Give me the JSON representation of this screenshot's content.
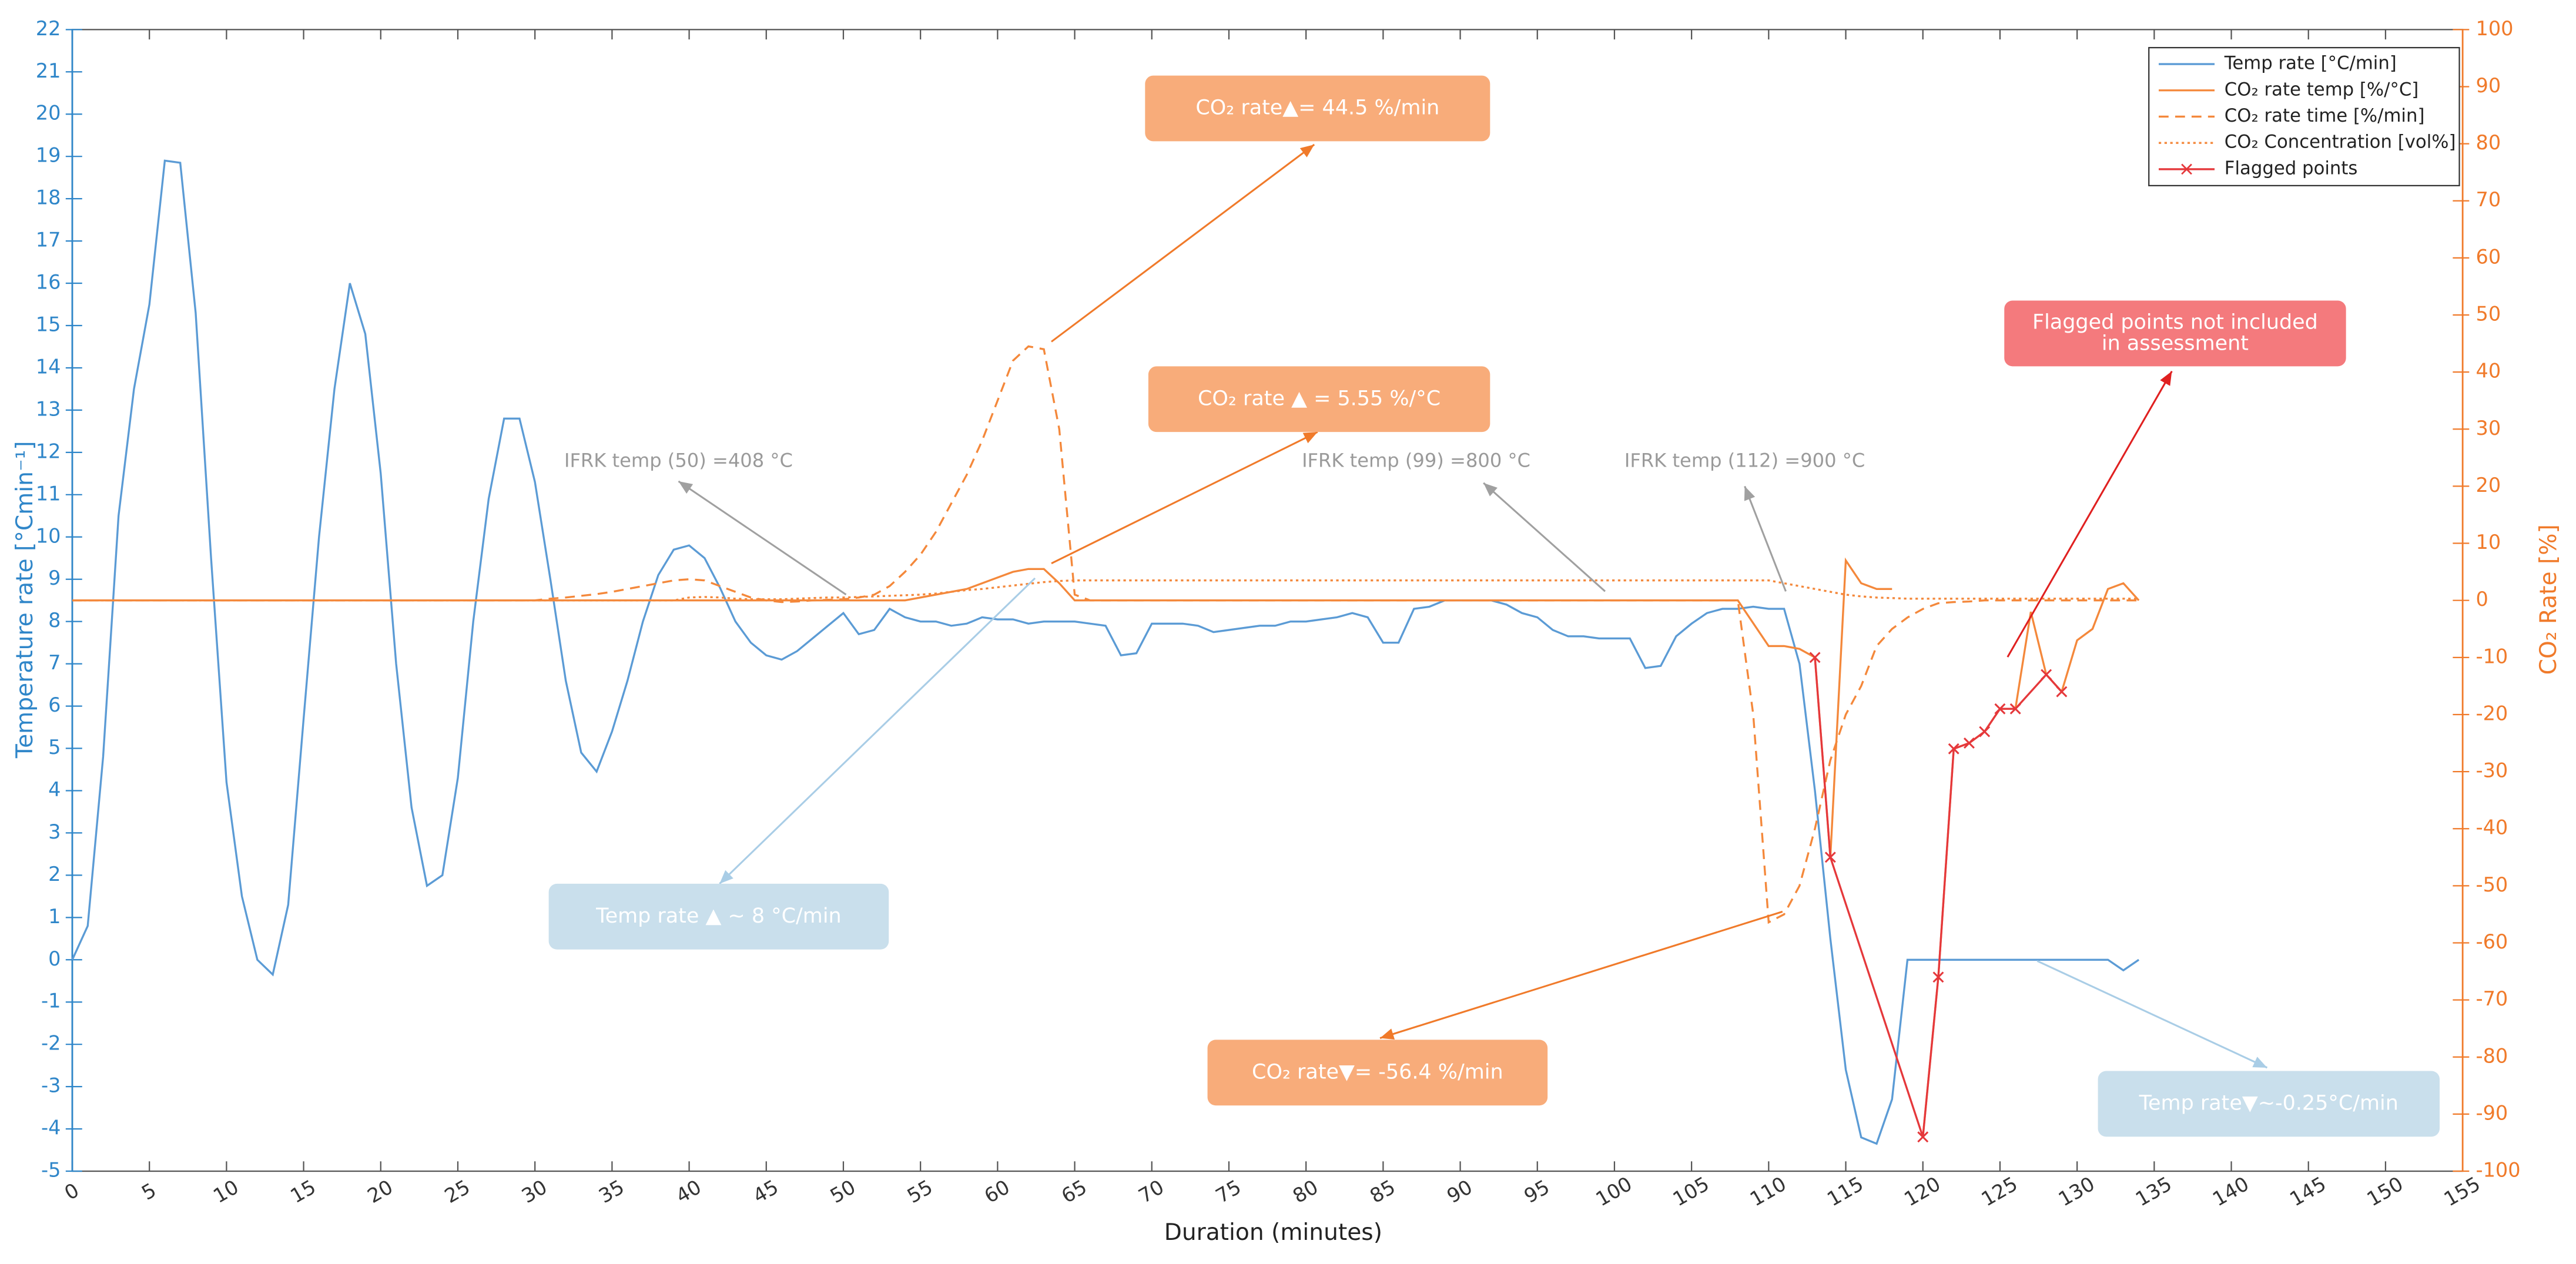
{
  "chart_data": {
    "type": "line",
    "xlabel": "Duration (minutes)",
    "ylabel": "Temperature rate [°Cmin⁻¹]",
    "y2label": "CO₂ Rate [%]",
    "xlim": [
      0,
      155
    ],
    "xticks": [
      0,
      5,
      10,
      15,
      20,
      25,
      30,
      35,
      40,
      45,
      50,
      55,
      60,
      65,
      70,
      75,
      80,
      85,
      90,
      95,
      100,
      105,
      110,
      115,
      120,
      125,
      130,
      135,
      140,
      145,
      150,
      155
    ],
    "ylim": [
      -5,
      22
    ],
    "yticks": [
      -5,
      -4,
      -3,
      -2,
      -1,
      0,
      1,
      2,
      3,
      4,
      5,
      6,
      7,
      8,
      9,
      10,
      11,
      12,
      13,
      14,
      15,
      16,
      17,
      18,
      19,
      20,
      21,
      22
    ],
    "y2lim": [
      -100,
      100
    ],
    "y2ticks": [
      -100,
      -90,
      -80,
      -70,
      -60,
      -50,
      -40,
      -30,
      -20,
      -10,
      0,
      10,
      20,
      30,
      40,
      50,
      60,
      70,
      80,
      90,
      100
    ],
    "y_color": "#2f86c9",
    "y2_color": "#f07a2a",
    "legend": "upper right",
    "grid": false,
    "x": [
      0,
      1,
      2,
      3,
      4,
      5,
      6,
      7,
      8,
      9,
      10,
      11,
      12,
      13,
      14,
      15,
      16,
      17,
      18,
      19,
      20,
      21,
      22,
      23,
      24,
      25,
      26,
      27,
      28,
      29,
      30,
      31,
      32,
      33,
      34,
      35,
      36,
      37,
      38,
      39,
      40,
      41,
      42,
      43,
      44,
      45,
      46,
      47,
      48,
      49,
      50,
      51,
      52,
      53,
      54,
      55,
      56,
      57,
      58,
      59,
      60,
      61,
      62,
      63,
      64,
      65,
      66,
      67,
      68,
      69,
      70,
      71,
      72,
      73,
      74,
      75,
      76,
      77,
      78,
      79,
      80,
      81,
      82,
      83,
      84,
      85,
      86,
      87,
      88,
      89,
      90,
      91,
      92,
      93,
      94,
      95,
      96,
      97,
      98,
      99,
      100,
      101,
      102,
      103,
      104,
      105,
      106,
      107,
      108,
      109,
      110,
      111,
      112,
      113,
      114,
      115,
      116,
      117,
      118,
      119,
      120,
      121,
      122,
      123,
      124,
      125,
      126,
      127,
      128,
      129,
      130,
      131,
      132,
      133,
      134
    ],
    "series": [
      {
        "name": "Temp rate [°C/min]",
        "color": "#5b9bd5",
        "linestyle": "solid",
        "values": [
          0,
          0.8,
          4.8,
          10.5,
          13.5,
          15.5,
          18.9,
          18.85,
          15.3,
          9.5,
          4.2,
          1.5,
          0,
          -0.35,
          1.3,
          5.7,
          10,
          13.5,
          16,
          14.8,
          11.5,
          7,
          3.6,
          1.75,
          2,
          4.3,
          8,
          10.9,
          12.8,
          12.8,
          11.3,
          9,
          6.6,
          4.9,
          4.45,
          5.4,
          6.6,
          8,
          9.1,
          9.7,
          9.8,
          9.5,
          8.8,
          8,
          7.5,
          7.2,
          7.1,
          7.3,
          7.6,
          7.9,
          8.2,
          7.7,
          7.8,
          8.3,
          8.1,
          8,
          8,
          7.9,
          7.95,
          8.1,
          8.05,
          8.05,
          7.95,
          8,
          8,
          8,
          7.95,
          7.9,
          7.2,
          7.25,
          7.95,
          7.95,
          7.95,
          7.9,
          7.75,
          7.8,
          7.85,
          7.9,
          7.9,
          8,
          8,
          8.05,
          8.1,
          8.2,
          8.1,
          7.5,
          7.5,
          8.3,
          8.35,
          8.5,
          8.5,
          8.5,
          8.5,
          8.4,
          8.2,
          8.1,
          7.8,
          7.65,
          7.65,
          7.6,
          7.6,
          7.6,
          6.9,
          6.95,
          7.65,
          7.95,
          8.2,
          8.3,
          8.3,
          8.35,
          8.3,
          8.3,
          7,
          4,
          0.5,
          -2.6,
          -4.2,
          -4.35,
          -3.3,
          0,
          0,
          0,
          0,
          0,
          0,
          0,
          0,
          0,
          0,
          0,
          0,
          0,
          0,
          -0.25,
          0
        ]
      },
      {
        "name": "CO₂ rate temp [%/°C]",
        "color": "#f4883b",
        "linestyle": "solid",
        "axis": "y2",
        "values": [
          0,
          0,
          0,
          0,
          0,
          0,
          0,
          0,
          0,
          0,
          0,
          0,
          0,
          0,
          0,
          0,
          0,
          0,
          0,
          0,
          0,
          0,
          0,
          0,
          0,
          0,
          0,
          0,
          0,
          0,
          0,
          0,
          0,
          0,
          0,
          0,
          0,
          0,
          0,
          0,
          0,
          0,
          0,
          0,
          0,
          0,
          0,
          0,
          0,
          0,
          0,
          0,
          0,
          0,
          0,
          0.5,
          1,
          1.5,
          2,
          3,
          4,
          5,
          5.5,
          5.5,
          3,
          0,
          0,
          0,
          0,
          0,
          0,
          0,
          0,
          0,
          0,
          0,
          0,
          0,
          0,
          0,
          0,
          0,
          0,
          0,
          0,
          0,
          0,
          0,
          0,
          0,
          0,
          0,
          0,
          0,
          0,
          0,
          0,
          0,
          0,
          0,
          0,
          0,
          0,
          0,
          0,
          0,
          0,
          0,
          0,
          -4,
          -8,
          -8,
          -8.5,
          -10,
          -45,
          7,
          3,
          2,
          2,
          null,
          -94,
          -66,
          -26,
          -25,
          -23,
          -19,
          -19,
          -2,
          -13,
          -16,
          -7,
          -5,
          2,
          3,
          0
        ]
      },
      {
        "name": "CO₂ rate time [%/min]",
        "color": "#f4883b",
        "linestyle": "dashed",
        "axis": "y2",
        "values": [
          0,
          0,
          0,
          0,
          0,
          0,
          0,
          0,
          0,
          0,
          0,
          0,
          0,
          0,
          0,
          0,
          0,
          0,
          0,
          0,
          0,
          0,
          0,
          0,
          0,
          0,
          0,
          0,
          0,
          0,
          0,
          0.3,
          0.5,
          0.8,
          1.1,
          1.5,
          2,
          2.5,
          3,
          3.5,
          3.7,
          3.5,
          2.5,
          1.5,
          0.5,
          0,
          -0.3,
          -0.2,
          0,
          0.1,
          0.2,
          0.5,
          1,
          2.5,
          5,
          8,
          12,
          17,
          22,
          28,
          35,
          42,
          44.5,
          44,
          30,
          1,
          0,
          0,
          0,
          0,
          0,
          0,
          0,
          0,
          0,
          0,
          0,
          0,
          0,
          0,
          0,
          0,
          0,
          0,
          0,
          0,
          0,
          0,
          0,
          0,
          0,
          0,
          0,
          0,
          0,
          0,
          0,
          0,
          0,
          0,
          0,
          0,
          0,
          0,
          0,
          0,
          0,
          0,
          0,
          -20,
          -56.4,
          -55,
          -50,
          -40,
          -28,
          -20,
          -15,
          -8,
          -5,
          -3,
          -1.5,
          -0.5,
          -0.3,
          -0.2,
          0,
          0,
          0,
          0,
          0,
          0,
          0,
          0,
          0,
          0,
          0
        ]
      },
      {
        "name": "CO₂ Concentration [vol%]",
        "color": "#f4883b",
        "linestyle": "dotted",
        "axis": "y2",
        "values": [
          0,
          0,
          0,
          0,
          0,
          0,
          0,
          0,
          0,
          0,
          0,
          0,
          0,
          0,
          0,
          0,
          0,
          0,
          0,
          0,
          0,
          0,
          0,
          0,
          0,
          0,
          0,
          0,
          0,
          0,
          0,
          0,
          0,
          0,
          0,
          0,
          0,
          0,
          0,
          0,
          0.5,
          0.6,
          0.5,
          0.3,
          0.2,
          0.2,
          0.2,
          0.3,
          0.4,
          0.5,
          0.5,
          0.6,
          0.7,
          0.8,
          0.9,
          1,
          1.2,
          1.5,
          1.8,
          2,
          2.3,
          2.6,
          2.9,
          3.2,
          3.4,
          3.5,
          3.5,
          3.5,
          3.5,
          3.5,
          3.5,
          3.5,
          3.5,
          3.5,
          3.5,
          3.5,
          3.5,
          3.5,
          3.5,
          3.5,
          3.5,
          3.5,
          3.5,
          3.5,
          3.5,
          3.5,
          3.5,
          3.5,
          3.5,
          3.5,
          3.5,
          3.5,
          3.5,
          3.5,
          3.5,
          3.5,
          3.5,
          3.5,
          3.5,
          3.5,
          3.5,
          3.5,
          3.5,
          3.5,
          3.5,
          3.5,
          3.5,
          3.5,
          3.5,
          3.5,
          3.5,
          3,
          2.5,
          2,
          1.5,
          1,
          0.7,
          0.5,
          0.4,
          0.3,
          0.3,
          0.3,
          0.3,
          0.3,
          0.3,
          0.3,
          0.3,
          0.3,
          0.3,
          0.3,
          0.3,
          0.3,
          0.3,
          0.3,
          0.3
        ]
      },
      {
        "name": "Flagged points",
        "color": "#e5383b",
        "linestyle": "solid",
        "marker": "x",
        "axis": "y2",
        "x": [
          113,
          114,
          120,
          121,
          122,
          123,
          124,
          125,
          126,
          128,
          129
        ],
        "values": [
          -10,
          -45,
          -94,
          -66,
          -26,
          -25,
          -23,
          -19,
          -19,
          -13,
          -16
        ]
      }
    ],
    "annotations": [
      {
        "lines": [
          "CO₂ rate▲= 44.5 %/min"
        ]
      },
      {
        "lines": [
          "CO₂ rate ▲ = 5.55 %/°C"
        ]
      },
      {
        "lines": [
          "IFRK temp (50) =408 °C"
        ]
      },
      {
        "lines": [
          "IFRK temp (99) =800 °C"
        ]
      },
      {
        "lines": [
          "IFRK temp (112) =900 °C"
        ]
      },
      {
        "lines": [
          "Flagged points not included",
          "in assessment"
        ]
      },
      {
        "lines": [
          "Temp rate ▲ ~ 8 °C/min"
        ]
      },
      {
        "lines": [
          "CO₂ rate▼= -56.4 %/min"
        ]
      },
      {
        "lines": [
          "Temp rate▼~-0.25°C/min"
        ]
      }
    ]
  }
}
